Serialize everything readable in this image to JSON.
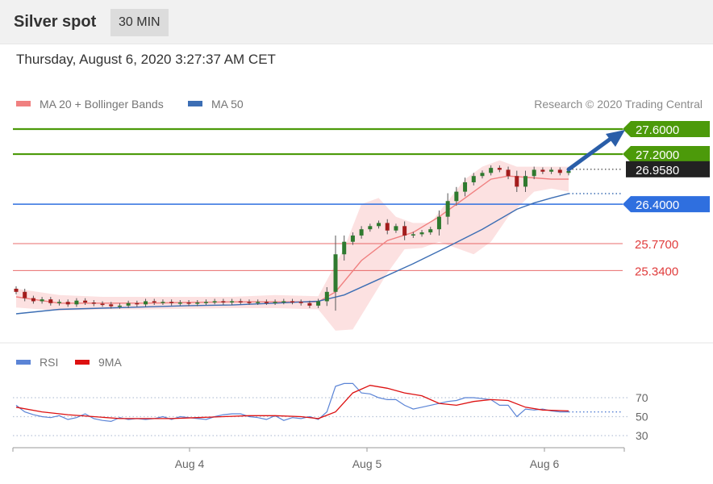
{
  "header": {
    "title": "Silver spot",
    "timeframe": "30 MIN"
  },
  "timestamp": "Thursday, August 6, 2020 3:27:37 AM CET",
  "credit": "Research © 2020 Trading Central",
  "colors": {
    "resistance": "#4c9a0a",
    "current": "#222222",
    "pivot": "#2f6fdf",
    "support": "#e03c3c",
    "ma20": "#f08080",
    "ma50": "#3c6eb4",
    "rsi": "#5b84d6",
    "rsi_ma": "#dd1111",
    "bollinger": "#fbdcdc",
    "arrow": "#2a5ea8"
  },
  "chart_data": [
    {
      "type": "line",
      "title": "",
      "x_ticks": [
        "Aug 4",
        "Aug 5",
        "Aug 6"
      ],
      "ylim": [
        24.6,
        27.95
      ],
      "legend": [
        {
          "name": "MA 20 + Bollinger Bands",
          "color": "#f08080"
        },
        {
          "name": "MA 50",
          "color": "#3c6eb4"
        }
      ],
      "levels": [
        {
          "label": "27.6000",
          "value": 27.6,
          "role": "resistance"
        },
        {
          "label": "27.2000",
          "value": 27.2,
          "role": "resistance"
        },
        {
          "label": "26.9580",
          "value": 26.958,
          "role": "current"
        },
        {
          "label": "26.4000",
          "value": 26.4,
          "role": "pivot"
        },
        {
          "label": "25.7700",
          "value": 25.77,
          "role": "support"
        },
        {
          "label": "25.3400",
          "value": 25.34,
          "role": "support"
        }
      ],
      "series": [
        {
          "name": "MA 50",
          "x": [
            0,
            5,
            10,
            15,
            20,
            25,
            30,
            35,
            38,
            42,
            46,
            50,
            54,
            58,
            60,
            62,
            64
          ],
          "values": [
            24.65,
            24.72,
            24.74,
            24.76,
            24.78,
            24.79,
            24.82,
            24.85,
            24.95,
            25.2,
            25.45,
            25.72,
            26.0,
            26.32,
            26.42,
            26.5,
            26.57
          ]
        },
        {
          "name": "MA 20",
          "x": [
            0,
            5,
            10,
            15,
            20,
            25,
            30,
            35,
            37,
            40,
            43,
            46,
            49,
            52,
            55,
            57,
            60,
            62,
            64
          ],
          "values": [
            24.92,
            24.82,
            24.82,
            24.82,
            24.83,
            24.84,
            24.84,
            24.84,
            25.0,
            25.5,
            25.82,
            25.95,
            26.2,
            26.5,
            26.8,
            26.85,
            26.82,
            26.8,
            26.8
          ]
        },
        {
          "name": "Bollinger upper",
          "x": [
            0,
            5,
            10,
            15,
            20,
            25,
            30,
            35,
            38,
            40,
            42,
            44,
            46,
            48,
            50,
            52,
            54,
            56,
            58,
            60,
            62,
            64
          ],
          "values": [
            25.05,
            24.95,
            24.92,
            24.92,
            24.92,
            24.92,
            24.95,
            24.93,
            25.7,
            26.4,
            26.5,
            26.2,
            26.1,
            26.1,
            26.45,
            26.8,
            27.0,
            27.1,
            27.0,
            27.0,
            27.0,
            27.0
          ]
        },
        {
          "name": "Bollinger lower",
          "x": [
            0,
            5,
            10,
            15,
            20,
            25,
            30,
            35,
            37,
            39,
            41,
            43,
            45,
            47,
            49,
            51,
            53,
            55,
            57,
            60,
            62,
            64
          ],
          "values": [
            24.75,
            24.7,
            24.72,
            24.72,
            24.73,
            24.74,
            24.74,
            24.72,
            24.38,
            24.4,
            24.85,
            25.3,
            25.68,
            25.7,
            25.8,
            25.7,
            25.6,
            25.8,
            26.2,
            26.6,
            26.65,
            26.6
          ]
        },
        {
          "name": "Price (close)",
          "x": [
            0,
            1,
            2,
            3,
            4,
            5,
            6,
            7,
            8,
            9,
            10,
            11,
            12,
            13,
            14,
            15,
            16,
            17,
            18,
            19,
            20,
            21,
            22,
            23,
            24,
            25,
            26,
            27,
            28,
            29,
            30,
            31,
            32,
            33,
            34,
            35,
            36,
            37,
            38,
            39,
            40,
            41,
            42,
            43,
            44,
            45,
            46,
            47,
            48,
            49,
            50,
            51,
            52,
            53,
            54,
            55,
            56,
            57,
            58,
            59,
            60,
            61,
            62,
            63,
            64
          ],
          "values": [
            25.0,
            24.9,
            24.85,
            24.88,
            24.82,
            24.84,
            24.8,
            24.86,
            24.83,
            24.81,
            24.8,
            24.77,
            24.78,
            24.82,
            24.8,
            24.85,
            24.83,
            24.84,
            24.82,
            24.83,
            24.81,
            24.83,
            24.84,
            24.85,
            24.83,
            24.85,
            24.84,
            24.83,
            24.84,
            24.83,
            24.84,
            24.85,
            24.84,
            24.82,
            24.78,
            24.85,
            25.0,
            25.6,
            25.8,
            25.9,
            26.0,
            26.05,
            26.1,
            25.98,
            26.05,
            25.9,
            25.92,
            25.95,
            26.0,
            26.2,
            26.45,
            26.6,
            26.75,
            26.85,
            26.9,
            26.98,
            26.95,
            26.85,
            26.68,
            26.85,
            26.95,
            26.92,
            26.95,
            26.9,
            26.93
          ]
        }
      ],
      "projection": {
        "from": 26.93,
        "to": 27.6
      }
    },
    {
      "type": "line",
      "title": "",
      "y_ticks": [
        70,
        50,
        30
      ],
      "ylim": [
        20,
        100
      ],
      "legend": [
        {
          "name": "RSI",
          "color": "#5b84d6"
        },
        {
          "name": "9MA",
          "color": "#dd1111"
        }
      ],
      "series": [
        {
          "name": "RSI",
          "x": [
            0,
            1,
            2,
            3,
            4,
            5,
            6,
            7,
            8,
            9,
            10,
            11,
            12,
            13,
            14,
            15,
            16,
            17,
            18,
            19,
            20,
            21,
            22,
            23,
            24,
            25,
            26,
            27,
            28,
            29,
            30,
            31,
            32,
            33,
            34,
            35,
            36,
            37,
            38,
            39,
            40,
            41,
            42,
            43,
            44,
            45,
            46,
            47,
            48,
            49,
            50,
            51,
            52,
            53,
            54,
            55,
            56,
            57,
            58,
            59,
            60,
            61,
            62,
            63,
            64
          ],
          "values": [
            62,
            55,
            52,
            50,
            49,
            51,
            47,
            49,
            53,
            48,
            46,
            45,
            49,
            47,
            48,
            47,
            48,
            50,
            47,
            50,
            49,
            48,
            47,
            50,
            52,
            53,
            53,
            50,
            49,
            47,
            51,
            46,
            49,
            48,
            50,
            47,
            55,
            82,
            85,
            85,
            75,
            74,
            70,
            68,
            68,
            62,
            58,
            60,
            62,
            64,
            66,
            67,
            70,
            70,
            69,
            68,
            62,
            62,
            50,
            58,
            57,
            58,
            56,
            55,
            55
          ]
        },
        {
          "name": "9MA",
          "x": [
            0,
            3,
            6,
            9,
            12,
            15,
            18,
            21,
            24,
            27,
            30,
            33,
            35,
            37,
            39,
            41,
            43,
            45,
            47,
            49,
            51,
            53,
            55,
            57,
            59,
            61,
            64
          ],
          "values": [
            60,
            55,
            52,
            50,
            48,
            48,
            48,
            49,
            50,
            51,
            51,
            50,
            48,
            55,
            75,
            83,
            80,
            75,
            72,
            64,
            62,
            66,
            68,
            67,
            60,
            57,
            56
          ]
        }
      ]
    }
  ]
}
